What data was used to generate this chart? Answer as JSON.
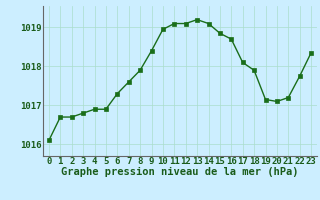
{
  "x": [
    0,
    1,
    2,
    3,
    4,
    5,
    6,
    7,
    8,
    9,
    10,
    11,
    12,
    13,
    14,
    15,
    16,
    17,
    18,
    19,
    20,
    21,
    22,
    23
  ],
  "y": [
    1016.1,
    1016.7,
    1016.7,
    1016.8,
    1016.9,
    1016.9,
    1017.3,
    1017.6,
    1017.9,
    1018.4,
    1018.95,
    1019.1,
    1019.1,
    1019.2,
    1019.1,
    1018.85,
    1018.7,
    1018.1,
    1017.9,
    1017.15,
    1017.1,
    1017.2,
    1017.75,
    1018.35
  ],
  "line_color": "#1a6e1a",
  "marker": "s",
  "marker_size": 2.2,
  "bg_color": "#cceeff",
  "grid_color": "#aaddcc",
  "ylabel_ticks": [
    1016,
    1017,
    1018,
    1019
  ],
  "xticks": [
    0,
    1,
    2,
    3,
    4,
    5,
    6,
    7,
    8,
    9,
    10,
    11,
    12,
    13,
    14,
    15,
    16,
    17,
    18,
    19,
    20,
    21,
    22,
    23
  ],
  "ylim": [
    1015.7,
    1019.55
  ],
  "xlim": [
    -0.5,
    23.5
  ],
  "xlabel": "Graphe pression niveau de la mer (hPa)",
  "xlabel_color": "#1a5c1a",
  "xlabel_fontsize": 7.5,
  "tick_fontsize": 6.5,
  "tick_color": "#1a5c1a",
  "border_color": "#666666",
  "line_width": 1.0
}
